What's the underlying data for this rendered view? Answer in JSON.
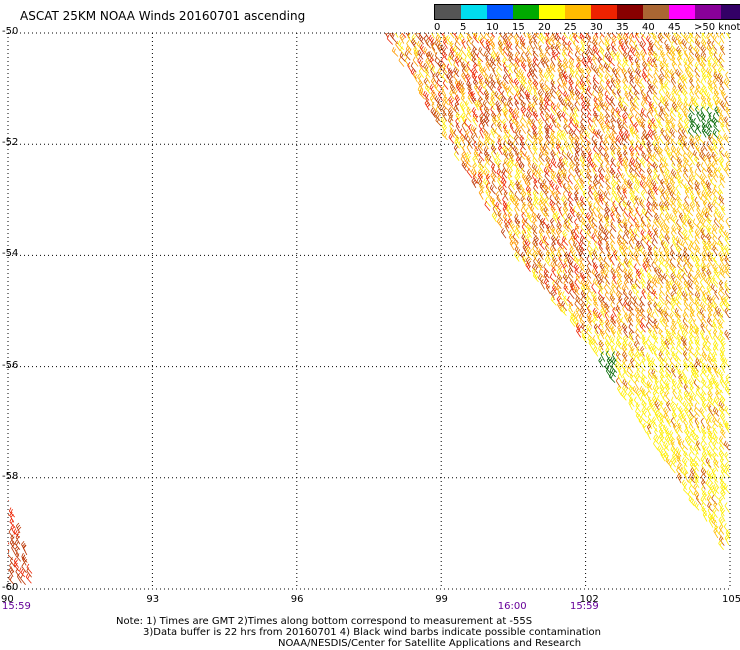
{
  "title": "ASCAT 25KM NOAA Winds 20160701 ascending",
  "legend": {
    "colors": [
      "#555555",
      "#00ddee",
      "#0055ff",
      "#00aa00",
      "#ffff00",
      "#ffbb00",
      "#ee2200",
      "#880000",
      "#aa6633",
      "#ff00ff",
      "#880099",
      "#330066"
    ],
    "labels": [
      "0",
      "5",
      "10",
      "15",
      "20",
      "25",
      "30",
      "35",
      "40",
      "45",
      ">50 knots"
    ]
  },
  "chart_data": {
    "type": "scatter",
    "title": "ASCAT 25KM NOAA Winds 20160701 ascending",
    "xlabel": "",
    "ylabel": "",
    "xlim": [
      90,
      105
    ],
    "ylim": [
      -60,
      -50
    ],
    "x_ticks": [
      "90",
      "93",
      "96",
      "99",
      "102",
      "105"
    ],
    "y_ticks": [
      "-50",
      "-52",
      "-54",
      "-56",
      "-58",
      "-60"
    ],
    "grid": true,
    "times": [
      {
        "label": "15:59",
        "lon": 90
      },
      {
        "label": "16:00",
        "lon": 100.3
      },
      {
        "label": "15:59",
        "lon": 101.8
      }
    ],
    "swaths": [
      {
        "name": "main swath",
        "polygon": [
          [
            97.8,
            -50
          ],
          [
            105,
            -50
          ],
          [
            105,
            -59.5
          ],
          [
            102.2,
            -55.8
          ],
          [
            100.6,
            -54.1
          ]
        ]
      },
      {
        "name": "lower-left swath",
        "polygon": [
          [
            90,
            -58.2
          ],
          [
            90.6,
            -60
          ],
          [
            90,
            -60
          ]
        ]
      }
    ],
    "contamination": [
      {
        "lon": 104.5,
        "lat": -51.7
      },
      {
        "lon": 102.3,
        "lat": -56.1
      }
    ]
  },
  "notes": {
    "line1": "Note: 1) Times are GMT 2)Times along bottom correspond to measurement at -55S",
    "line2": "3)Data buffer is 22 hrs from 20160701 4) Black wind barbs indicate possible contamination",
    "credit": "NOAA/NESDIS/Center for Satellite Applications and Research"
  }
}
